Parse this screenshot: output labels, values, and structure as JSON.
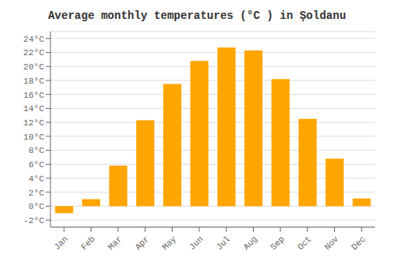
{
  "chart_data": {
    "type": "bar",
    "title": "Average monthly temperatures (°C ) in Şoldanu",
    "categories": [
      "Jan",
      "Feb",
      "Mar",
      "Apr",
      "May",
      "Jun",
      "Jul",
      "Aug",
      "Sep",
      "Oct",
      "Nov",
      "Dec"
    ],
    "values": [
      -1.0,
      1.0,
      5.8,
      12.3,
      17.5,
      20.8,
      22.7,
      22.3,
      18.2,
      12.5,
      6.8,
      1.1
    ],
    "color": "#FFA500",
    "ylim": [
      -3,
      25
    ],
    "yticks": [
      {
        "value": -2,
        "label": "-2°C"
      },
      {
        "value": 0,
        "label": "0°C"
      },
      {
        "value": 2,
        "label": "2°C"
      },
      {
        "value": 4,
        "label": "4°C"
      },
      {
        "value": 6,
        "label": "6°C"
      },
      {
        "value": 8,
        "label": "8°C"
      },
      {
        "value": 10,
        "label": "10°C"
      },
      {
        "value": 12,
        "label": "12°C"
      },
      {
        "value": 14,
        "label": "14°C"
      },
      {
        "value": 16,
        "label": "16°C"
      },
      {
        "value": 18,
        "label": "18°C"
      },
      {
        "value": 20,
        "label": "20°C"
      },
      {
        "value": 22,
        "label": "22°C"
      },
      {
        "value": 24,
        "label": "24°C"
      }
    ],
    "grid": true
  }
}
